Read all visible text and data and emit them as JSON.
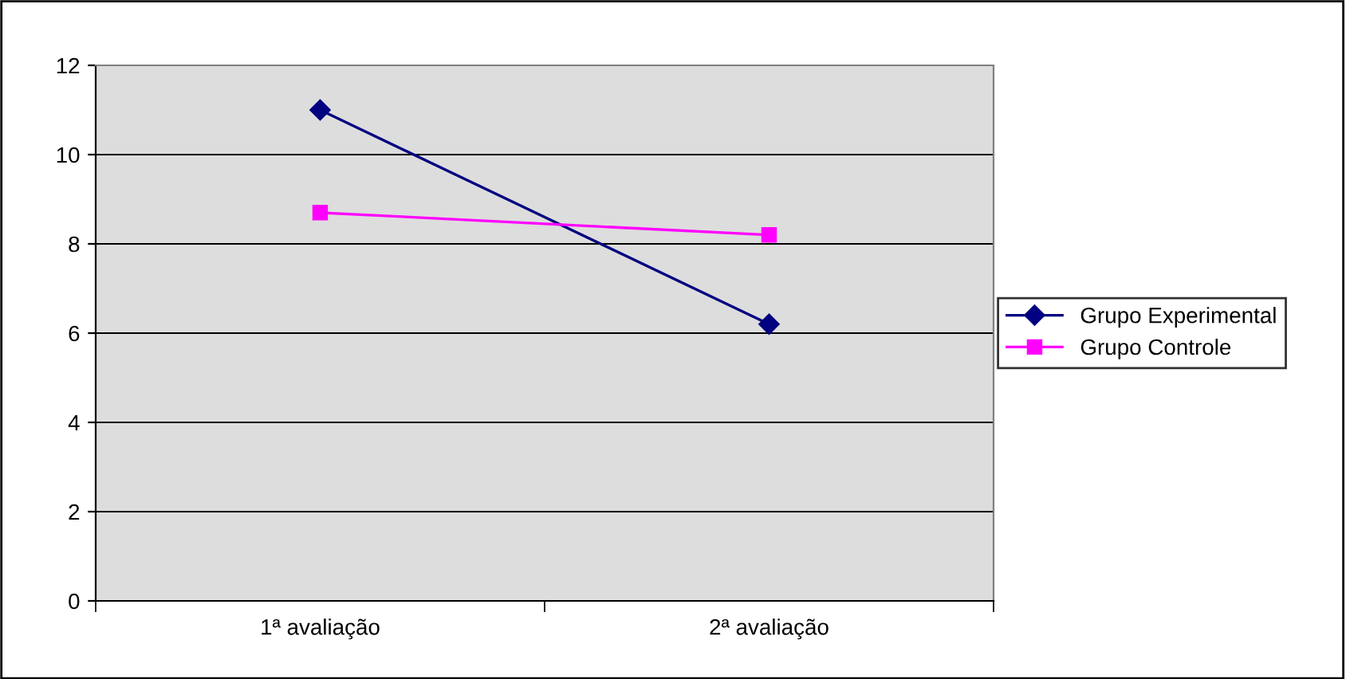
{
  "chart_data": {
    "type": "line",
    "categories": [
      "1ª avaliação",
      "2ª avaliação"
    ],
    "series": [
      {
        "name": "Grupo Experimental",
        "color": "#000080",
        "values": [
          11,
          6.2
        ],
        "marker": "diamond"
      },
      {
        "name": "Grupo Controle",
        "color": "#ff00ff",
        "values": [
          8.7,
          8.2
        ],
        "marker": "square"
      }
    ],
    "ylim": [
      0,
      12
    ],
    "yticks": [
      0,
      2,
      4,
      6,
      8,
      10,
      12
    ],
    "grid": "y",
    "legend": "right"
  }
}
